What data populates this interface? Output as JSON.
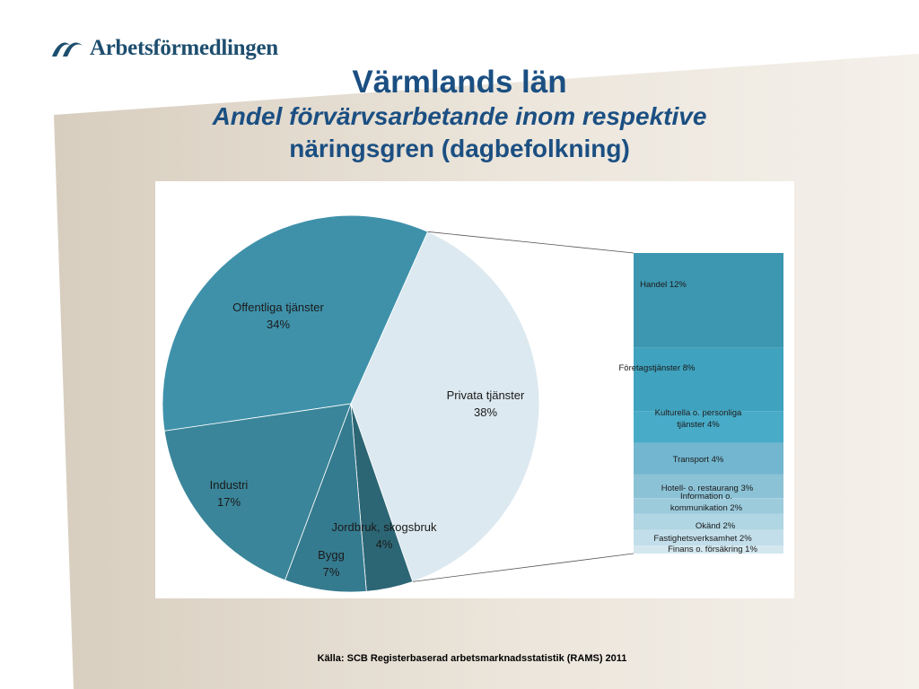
{
  "header": {
    "logo_text": "Arbetsförmedlingen",
    "logo_icon": "arbetsformedlingen-logo-icon",
    "title": "Värmlands län",
    "subtitle_line1": "Andel förvärvsarbetande inom respektive",
    "subtitle_line2": "näringsgren  (dagbefolkning)"
  },
  "colors": {
    "title": "#1b4f82",
    "pie_offentliga": "#3f91aa",
    "pie_privata": "#dce9f0",
    "pie_industri": "#3a8599",
    "pie_bygg": "#357b8f",
    "pie_jordbruk": "#2c6675",
    "bar_handel": "#3d97b0",
    "bar_foretag": "#3fa2be",
    "bar_kultur": "#48abc8",
    "bar_transport": "#72b6cf",
    "bar_hotell": "#8cc2d6",
    "bar_info": "#9ccbdc",
    "bar_okand": "#b0d5e3",
    "bar_fastighet": "#c2deea",
    "bar_finans": "#d3e7ef"
  },
  "chart_data": {
    "type": "pie",
    "unit": "%",
    "pie": {
      "slices": [
        {
          "label": "Offentliga tjänster",
          "value_label": "34%",
          "value": 34
        },
        {
          "label": "Privata tjänster",
          "value_label": "38%",
          "value": 38
        },
        {
          "label": "Jordbruk, skogsbruk",
          "value_label": "4%",
          "value": 4
        },
        {
          "label": "Bygg",
          "value_label": "7%",
          "value": 7
        },
        {
          "label": "Industri",
          "value_label": "17%",
          "value": 17
        }
      ]
    },
    "breakdown": {
      "of": "Privata tjänster",
      "segments": [
        {
          "label": "Handel 12%",
          "value": 12
        },
        {
          "label": "Företagstjänster 8%",
          "value": 8
        },
        {
          "label": "Kulturella o. personliga tjänster 4%",
          "value": 4
        },
        {
          "label": "Transport 4%",
          "value": 4
        },
        {
          "label": "Hotell- o. restaurang 3%",
          "value": 3
        },
        {
          "label": "Information o. kommunikation 2%",
          "value": 2
        },
        {
          "label": "Okänd 2%",
          "value": 2
        },
        {
          "label": "Fastighetsverksamhet 2%",
          "value": 2
        },
        {
          "label": "Finans o. försäkring 1%",
          "value": 1
        }
      ]
    }
  },
  "source": "Källa: SCB Registerbaserad arbetsmarknadsstatistik (RAMS) 2011"
}
